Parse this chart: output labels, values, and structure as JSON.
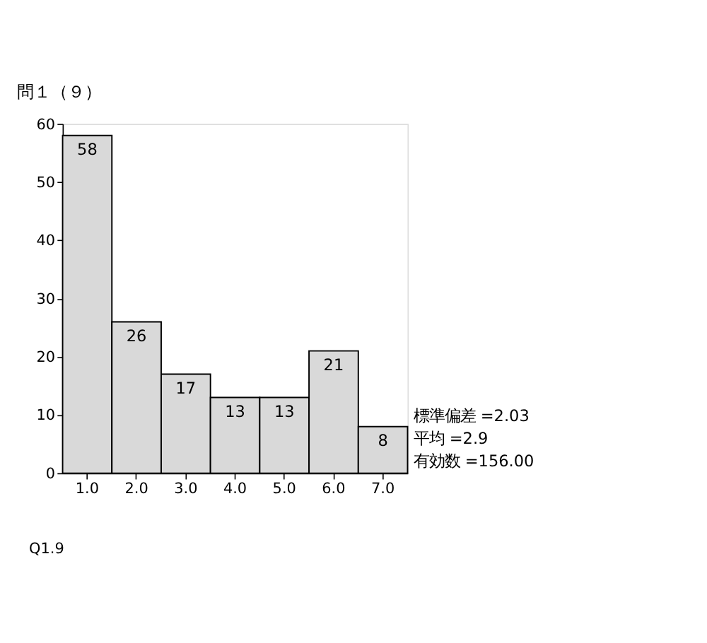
{
  "chart_data": {
    "type": "bar",
    "title": "問１（９）",
    "xlabel": "Q1.9",
    "categories": [
      "1.0",
      "2.0",
      "3.0",
      "4.0",
      "5.0",
      "6.0",
      "7.0"
    ],
    "values": [
      58,
      26,
      17,
      13,
      13,
      21,
      8
    ],
    "color": "#d9d9d9",
    "ylim": [
      0,
      60
    ],
    "yticks": [
      0,
      10,
      20,
      30,
      40,
      50,
      60
    ],
    "data_labels": true,
    "grid": false,
    "annotations": [
      "標準偏差 =2.03",
      "平均 =2.9",
      "有効数 =156.00"
    ]
  }
}
